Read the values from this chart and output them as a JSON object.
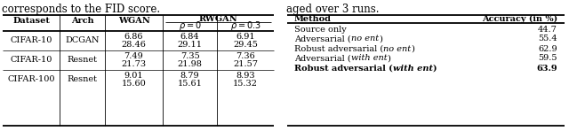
{
  "left_caption": "corresponds to the FID score.",
  "right_caption": "aged over 3 runs.",
  "left_table": {
    "rows": [
      [
        "CIFAR-10",
        "DCGAN",
        "6.86",
        "28.46",
        "6.84",
        "29.11",
        "6.91",
        "29.45"
      ],
      [
        "CIFAR-10",
        "Resnet",
        "7.49",
        "21.73",
        "7.35",
        "21.98",
        "7.36",
        "21.57"
      ],
      [
        "CIFAR-100",
        "Resnet",
        "9.01",
        "15.60",
        "8.79",
        "15.61",
        "8.93",
        "15.32"
      ]
    ]
  },
  "right_table": {
    "rows": [
      [
        "Source only",
        "",
        "",
        "44.7",
        false
      ],
      [
        "Adversarial (",
        "no ent",
        ")",
        "55.4",
        false
      ],
      [
        "Robust adversarial (",
        "no ent",
        ")",
        "62.9",
        false
      ],
      [
        "Adversarial (",
        "with ent",
        ")",
        "59.5",
        false
      ],
      [
        "Robust adversarial (",
        "with ent",
        ")",
        "63.9",
        true
      ]
    ]
  },
  "bg_color": "#ffffff",
  "text_color": "#222222",
  "fs": 7.0
}
